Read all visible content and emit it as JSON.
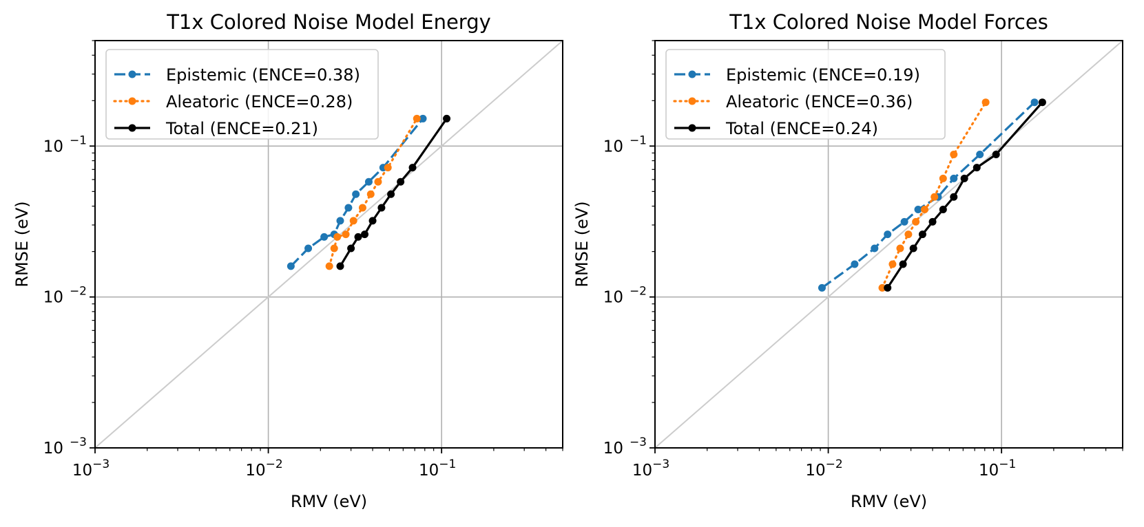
{
  "figure": {
    "tick_labels": [
      {
        "base": "10",
        "exp": "−3"
      },
      {
        "base": "10",
        "exp": "−2"
      },
      {
        "base": "10",
        "exp": "−1"
      }
    ]
  },
  "chart_data": [
    {
      "type": "line",
      "scale": "log-log",
      "title": "T1x Colored Noise Model Energy",
      "xlabel": "RMV (eV)",
      "ylabel": "RMSE (eV)",
      "xlim": [
        0.001,
        0.5
      ],
      "ylim": [
        0.001,
        0.5
      ],
      "grid": true,
      "legend_position": "upper-left",
      "reference_line": "y = x",
      "series": [
        {
          "name": "Epistemic (ENCE=0.38)",
          "color": "#1f77b4",
          "style": "dashed",
          "x": [
            0.0135,
            0.017,
            0.021,
            0.024,
            0.026,
            0.029,
            0.032,
            0.038,
            0.046,
            0.078
          ],
          "y": [
            0.016,
            0.021,
            0.025,
            0.026,
            0.032,
            0.039,
            0.048,
            0.058,
            0.072,
            0.152
          ]
        },
        {
          "name": "Aleatoric (ENCE=0.28)",
          "color": "#ff7f0e",
          "style": "dotted",
          "x": [
            0.0225,
            0.024,
            0.025,
            0.028,
            0.031,
            0.035,
            0.039,
            0.043,
            0.049,
            0.072
          ],
          "y": [
            0.016,
            0.021,
            0.025,
            0.026,
            0.032,
            0.039,
            0.048,
            0.058,
            0.072,
            0.152
          ]
        },
        {
          "name": "Total (ENCE=0.21)",
          "color": "#000000",
          "style": "solid",
          "x": [
            0.026,
            0.03,
            0.033,
            0.036,
            0.04,
            0.045,
            0.051,
            0.058,
            0.068,
            0.107
          ],
          "y": [
            0.016,
            0.021,
            0.025,
            0.026,
            0.032,
            0.039,
            0.048,
            0.058,
            0.072,
            0.152
          ]
        }
      ]
    },
    {
      "type": "line",
      "scale": "log-log",
      "title": "T1x Colored Noise Model Forces",
      "xlabel": "RMV (eV)",
      "ylabel": "RMSE (eV)",
      "xlim": [
        0.001,
        0.5
      ],
      "ylim": [
        0.001,
        0.5
      ],
      "grid": true,
      "legend_position": "upper-left",
      "reference_line": "y = x",
      "series": [
        {
          "name": "Epistemic (ENCE=0.19)",
          "color": "#1f77b4",
          "style": "dashed",
          "x": [
            0.0092,
            0.0142,
            0.0185,
            0.022,
            0.0275,
            0.033,
            0.043,
            0.053,
            0.075,
            0.155
          ],
          "y": [
            0.0115,
            0.0165,
            0.021,
            0.026,
            0.0315,
            0.038,
            0.046,
            0.061,
            0.088,
            0.195
          ]
        },
        {
          "name": "Aleatoric (ENCE=0.36)",
          "color": "#ff7f0e",
          "style": "dotted",
          "x": [
            0.0205,
            0.0235,
            0.026,
            0.029,
            0.032,
            0.036,
            0.041,
            0.046,
            0.053,
            0.081
          ],
          "y": [
            0.0115,
            0.0165,
            0.021,
            0.026,
            0.0315,
            0.038,
            0.046,
            0.061,
            0.088,
            0.195
          ]
        },
        {
          "name": "Total (ENCE=0.24)",
          "color": "#000000",
          "style": "solid",
          "x": [
            0.022,
            0.027,
            0.031,
            0.035,
            0.04,
            0.046,
            0.053,
            0.061,
            0.072,
            0.093,
            0.172
          ],
          "y": [
            0.0115,
            0.0165,
            0.021,
            0.026,
            0.0315,
            0.038,
            0.046,
            0.061,
            0.072,
            0.088,
            0.195
          ]
        }
      ]
    }
  ]
}
